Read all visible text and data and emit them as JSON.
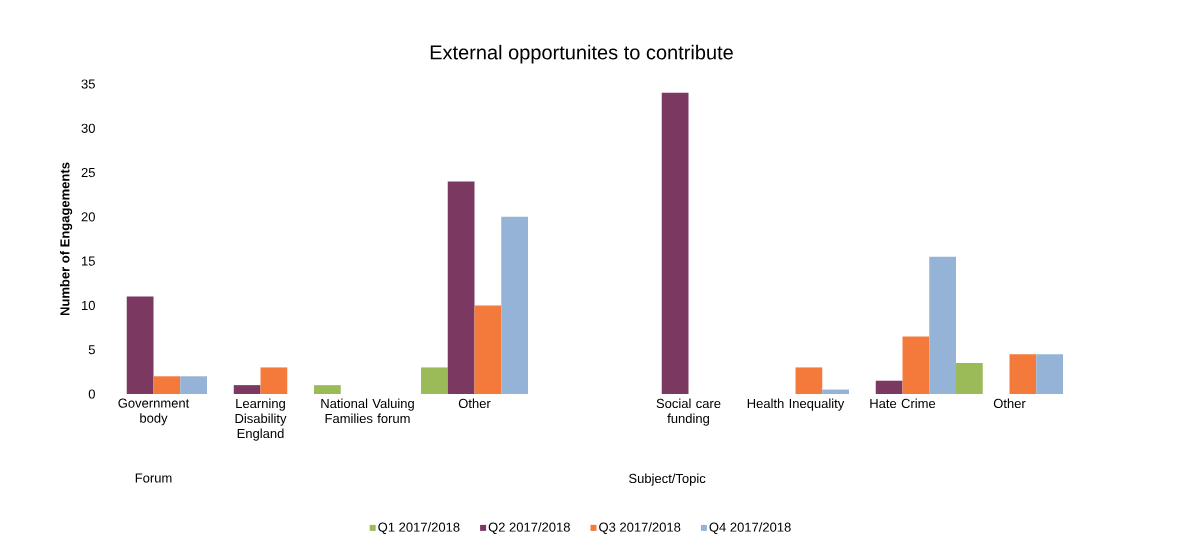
{
  "chart_data": {
    "type": "bar",
    "title": "External opportunites to contribute",
    "ylabel": "Number of Engagements",
    "categories": [
      "Government body",
      "Learning Disability England",
      "National Valuing Families forum",
      "Other",
      null,
      "Social care funding",
      "Health Inequality",
      "Hate Crime",
      "Other"
    ],
    "series": [
      {
        "name": "Q1 2017/2018",
        "color": "#9bbb59",
        "values": [
          0,
          0,
          1,
          3,
          null,
          0,
          0,
          0,
          3.5
        ]
      },
      {
        "name": "Q2 2017/2018",
        "color": "#7b3962",
        "values": [
          11,
          1,
          0,
          24,
          null,
          34,
          0,
          1.5,
          0
        ]
      },
      {
        "name": "Q3 2017/2018",
        "color": "#f47a3b",
        "values": [
          2,
          3,
          0,
          10,
          null,
          0,
          3,
          6.5,
          4.5
        ]
      },
      {
        "name": "Q4 2017/2018",
        "color": "#95b3d7",
        "values": [
          2,
          0,
          0,
          20,
          null,
          0,
          0.5,
          15.5,
          4.5
        ]
      }
    ],
    "ylim": [
      0,
      35
    ],
    "yticks": [
      0,
      5,
      10,
      15,
      20,
      25,
      30,
      35
    ],
    "grid": false,
    "legend": "bottom",
    "annotations": [
      "Forum",
      "Subject/Topic"
    ]
  }
}
